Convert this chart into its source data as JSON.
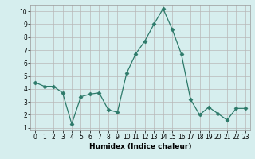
{
  "x": [
    0,
    1,
    2,
    3,
    4,
    5,
    6,
    7,
    8,
    9,
    10,
    11,
    12,
    13,
    14,
    15,
    16,
    17,
    18,
    19,
    20,
    21,
    22,
    23
  ],
  "y": [
    4.5,
    4.2,
    4.2,
    3.7,
    1.3,
    3.4,
    3.6,
    3.7,
    2.4,
    2.2,
    5.2,
    6.7,
    7.7,
    9.0,
    10.2,
    8.6,
    6.7,
    3.2,
    2.0,
    2.6,
    2.1,
    1.6,
    2.5,
    2.5
  ],
  "xlabel": "Humidex (Indice chaleur)",
  "xlim": [
    -0.5,
    23.5
  ],
  "ylim": [
    0.8,
    10.5
  ],
  "yticks": [
    1,
    2,
    3,
    4,
    5,
    6,
    7,
    8,
    9,
    10
  ],
  "xticks": [
    0,
    1,
    2,
    3,
    4,
    5,
    6,
    7,
    8,
    9,
    10,
    11,
    12,
    13,
    14,
    15,
    16,
    17,
    18,
    19,
    20,
    21,
    22,
    23
  ],
  "line_color": "#2d7a6a",
  "marker": "D",
  "marker_size": 2.5,
  "linewidth": 0.9,
  "bg_color": "#d6eeee",
  "grid_color": "#b8b8b8",
  "tick_fontsize": 5.5,
  "xlabel_fontsize": 6.5
}
